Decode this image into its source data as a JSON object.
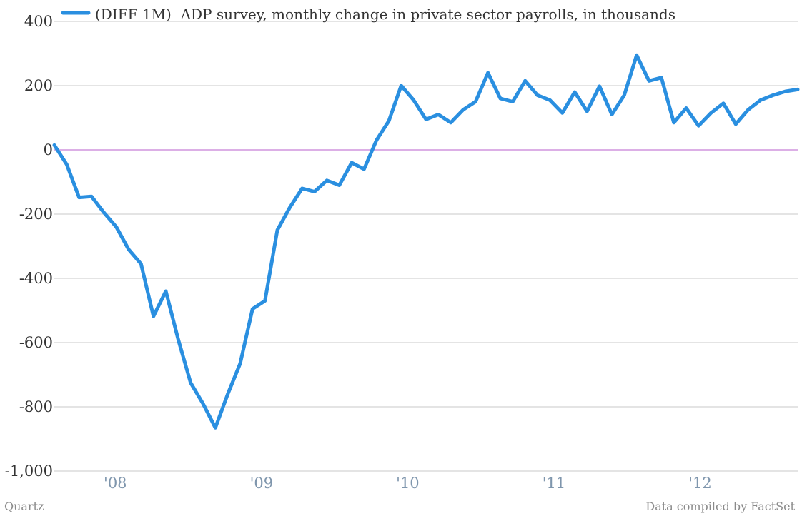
{
  "chart_data": {
    "type": "line",
    "xlabel": "",
    "ylabel": "",
    "ylim": [
      -1000,
      400
    ],
    "xlim": [
      2007.583,
      2012.667
    ],
    "yticks": [
      400,
      200,
      0,
      -200,
      -400,
      -600,
      -800,
      -1000
    ],
    "ytick_labels": [
      "400",
      "200",
      "0",
      "-200",
      "-400",
      "-600",
      "-800",
      "-1,000"
    ],
    "xticks": [
      {
        "value": 2008.0,
        "label": "'08"
      },
      {
        "value": 2009.0,
        "label": "'09"
      },
      {
        "value": 2010.0,
        "label": "'10"
      },
      {
        "value": 2011.0,
        "label": "'11"
      },
      {
        "value": 2012.0,
        "label": "'12"
      }
    ],
    "grid": true,
    "legend": "top-left",
    "series": [
      {
        "name": "(DIFF 1M)  ADP survey, monthly change in private sector payrolls, in thousands",
        "color": "#2a8fe0",
        "values": [
          15,
          -45,
          -148,
          -145,
          -195,
          -240,
          -310,
          -355,
          -518,
          -440,
          -590,
          -725,
          -790,
          -865,
          -760,
          -665,
          -495,
          -470,
          -250,
          -180,
          -120,
          -130,
          -95,
          -110,
          -40,
          -60,
          30,
          90,
          200,
          155,
          95,
          110,
          85,
          125,
          150,
          240,
          160,
          150,
          215,
          170,
          155,
          115,
          180,
          120,
          198,
          110,
          170,
          295,
          215,
          225,
          85,
          130,
          75,
          115,
          145,
          80,
          125,
          155,
          170,
          182,
          188
        ]
      }
    ]
  },
  "footer": {
    "source_left": "Quartz",
    "source_right": "Data compiled by FactSet"
  }
}
